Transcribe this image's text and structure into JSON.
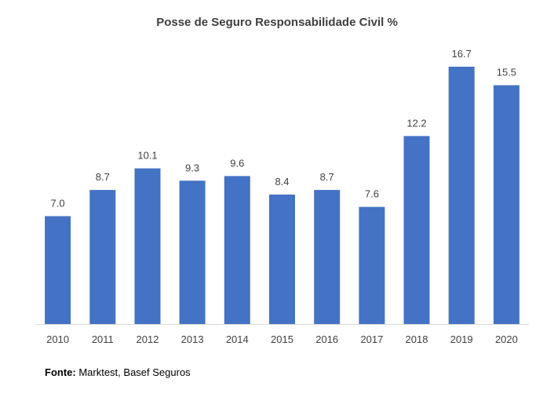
{
  "chart_data": {
    "type": "bar",
    "title": "Posse de Seguro Responsabilidade Civil %",
    "categories": [
      "2010",
      "2011",
      "2012",
      "2013",
      "2014",
      "2015",
      "2016",
      "2017",
      "2018",
      "2019",
      "2020"
    ],
    "values": [
      7.0,
      8.7,
      10.1,
      9.3,
      9.6,
      8.4,
      8.7,
      7.6,
      12.2,
      16.7,
      15.5
    ],
    "value_labels": [
      "7.0",
      "8.7",
      "10.1",
      "9.3",
      "9.6",
      "8.4",
      "8.7",
      "7.6",
      "12.2",
      "16.7",
      "15.5"
    ],
    "xlabel": "",
    "ylabel": "",
    "ylim": [
      0,
      16.7
    ],
    "grid": false,
    "legend": "none",
    "bar_color": "#4472C4",
    "axis_color": "#D9D9D9",
    "label_color": "#404040"
  },
  "source": {
    "label": "Fonte:",
    "text": " Marktest, Basef Seguros"
  }
}
